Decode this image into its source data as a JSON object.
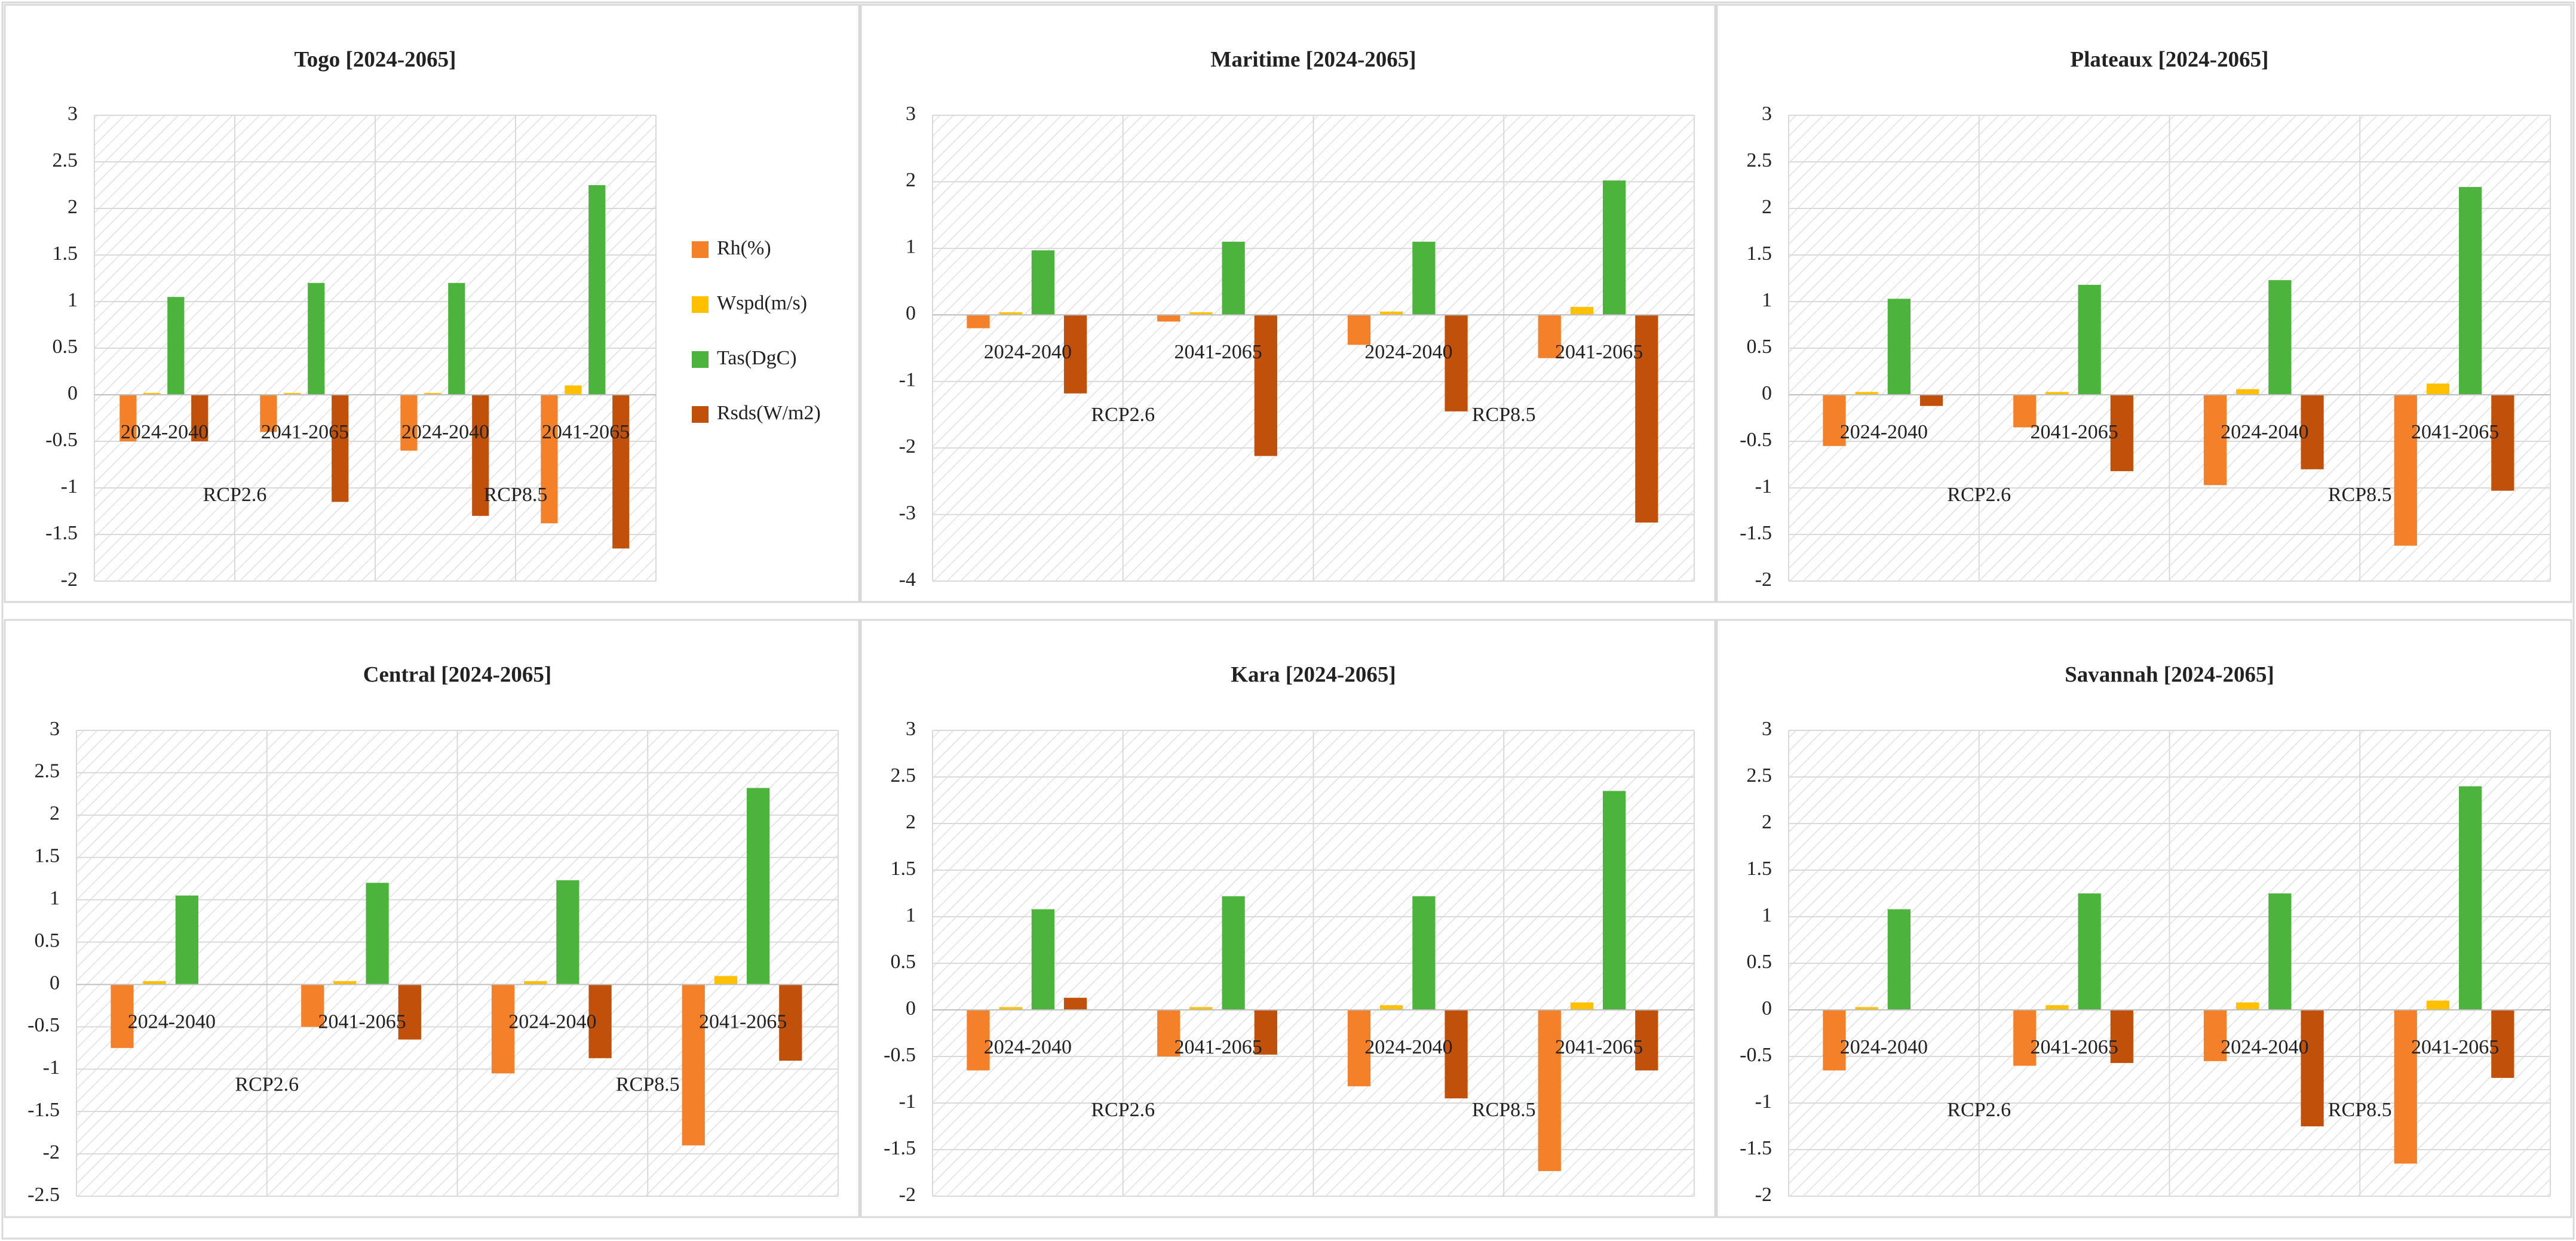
{
  "chart_data": [
    {
      "type": "bar",
      "title": "Togo [2024-2065]",
      "legend": true,
      "categories": [
        "2024-2040",
        "2041-2065",
        "2024-2040",
        "2041-2065"
      ],
      "category_groups": [
        "RCP2.6",
        "RCP8.5"
      ],
      "ylim": [
        -2,
        3
      ],
      "yticks": [
        -2,
        -1.5,
        -1,
        -0.5,
        0,
        0.5,
        1,
        1.5,
        2,
        2.5,
        3
      ],
      "grid": true,
      "series": [
        {
          "name": "Rh(%)",
          "color": "#f4812a",
          "values": [
            -0.5,
            -0.4,
            -0.6,
            -1.38
          ]
        },
        {
          "name": "Wspd(m/s)",
          "color": "#ffc000",
          "values": [
            0.02,
            0.02,
            0.02,
            0.1
          ]
        },
        {
          "name": "Tas(DgC)",
          "color": "#4cb43c",
          "values": [
            1.05,
            1.2,
            1.2,
            2.25
          ]
        },
        {
          "name": "Rsds(W/m2)",
          "color": "#c0500a",
          "values": [
            -0.5,
            -1.15,
            -1.3,
            -1.65
          ]
        }
      ]
    },
    {
      "type": "bar",
      "title": "Maritime [2024-2065]",
      "legend": false,
      "categories": [
        "2024-2040",
        "2041-2065",
        "2024-2040",
        "2041-2065"
      ],
      "category_groups": [
        "RCP2.6",
        "RCP8.5"
      ],
      "ylim": [
        -4,
        3
      ],
      "yticks": [
        -4,
        -3,
        -2,
        -1,
        0,
        1,
        2,
        3
      ],
      "grid": true,
      "series": [
        {
          "color": "#f4812a",
          "values": [
            -0.2,
            -0.1,
            -0.45,
            -0.65
          ]
        },
        {
          "color": "#ffc000",
          "values": [
            0.04,
            0.04,
            0.05,
            0.12
          ]
        },
        {
          "color": "#4cb43c",
          "values": [
            0.97,
            1.1,
            1.1,
            2.02
          ]
        },
        {
          "color": "#c0500a",
          "values": [
            -1.18,
            -2.12,
            -1.45,
            -3.12
          ]
        }
      ]
    },
    {
      "type": "bar",
      "title": "Plateaux [2024-2065]",
      "legend": false,
      "categories": [
        "2024-2040",
        "2041-2065",
        "2024-2040",
        "2041-2065"
      ],
      "category_groups": [
        "RCP2.6",
        "RCP8.5"
      ],
      "ylim": [
        -2,
        3
      ],
      "yticks": [
        -2,
        -1.5,
        -1,
        -0.5,
        0,
        0.5,
        1,
        1.5,
        2,
        2.5,
        3
      ],
      "grid": true,
      "series": [
        {
          "color": "#f4812a",
          "values": [
            -0.55,
            -0.35,
            -0.97,
            -1.62
          ]
        },
        {
          "color": "#ffc000",
          "values": [
            0.03,
            0.03,
            0.06,
            0.12
          ]
        },
        {
          "color": "#4cb43c",
          "values": [
            1.03,
            1.18,
            1.23,
            2.23
          ]
        },
        {
          "color": "#c0500a",
          "values": [
            -0.12,
            -0.82,
            -0.8,
            -1.03
          ]
        }
      ]
    },
    {
      "type": "bar",
      "title": "Central [2024-2065]",
      "legend": false,
      "categories": [
        "2024-2040",
        "2041-2065",
        "2024-2040",
        "2041-2065"
      ],
      "category_groups": [
        "RCP2.6",
        "RCP8.5"
      ],
      "ylim": [
        -2.5,
        3
      ],
      "yticks": [
        -2.5,
        -2,
        -1.5,
        -1,
        -0.5,
        0,
        0.5,
        1,
        1.5,
        2,
        2.5,
        3
      ],
      "grid": true,
      "series": [
        {
          "color": "#f4812a",
          "values": [
            -0.75,
            -0.5,
            -1.05,
            -1.9
          ]
        },
        {
          "color": "#ffc000",
          "values": [
            0.04,
            0.04,
            0.04,
            0.1
          ]
        },
        {
          "color": "#4cb43c",
          "values": [
            1.05,
            1.2,
            1.23,
            2.32
          ]
        },
        {
          "color": "#c0500a",
          "values": [
            0,
            -0.65,
            -0.87,
            -0.9
          ]
        }
      ]
    },
    {
      "type": "bar",
      "title": "Kara [2024-2065]",
      "legend": false,
      "categories": [
        "2024-2040",
        "2041-2065",
        "2024-2040",
        "2041-2065"
      ],
      "category_groups": [
        "RCP2.6",
        "RCP8.5"
      ],
      "ylim": [
        -2,
        3
      ],
      "yticks": [
        -2,
        -1.5,
        -1,
        -0.5,
        0,
        0.5,
        1,
        1.5,
        2,
        2.5,
        3
      ],
      "grid": true,
      "series": [
        {
          "color": "#f4812a",
          "values": [
            -0.65,
            -0.5,
            -0.82,
            -1.73
          ]
        },
        {
          "color": "#ffc000",
          "values": [
            0.03,
            0.03,
            0.05,
            0.08
          ]
        },
        {
          "color": "#4cb43c",
          "values": [
            1.08,
            1.22,
            1.22,
            2.35
          ]
        },
        {
          "color": "#c0500a",
          "values": [
            0.13,
            -0.48,
            -0.95,
            -0.65
          ]
        }
      ]
    },
    {
      "type": "bar",
      "title": "Savannah [2024-2065]",
      "legend": false,
      "categories": [
        "2024-2040",
        "2041-2065",
        "2024-2040",
        "2041-2065"
      ],
      "category_groups": [
        "RCP2.6",
        "RCP8.5"
      ],
      "ylim": [
        -2,
        3
      ],
      "yticks": [
        -2,
        -1.5,
        -1,
        -0.5,
        0,
        0.5,
        1,
        1.5,
        2,
        2.5,
        3
      ],
      "grid": true,
      "series": [
        {
          "color": "#f4812a",
          "values": [
            -0.65,
            -0.6,
            -0.55,
            -1.65
          ]
        },
        {
          "color": "#ffc000",
          "values": [
            0.03,
            0.05,
            0.08,
            0.1
          ]
        },
        {
          "color": "#4cb43c",
          "values": [
            1.08,
            1.25,
            1.25,
            2.4
          ]
        },
        {
          "color": "#c0500a",
          "values": [
            0,
            -0.57,
            -1.25,
            -0.73
          ]
        }
      ]
    }
  ]
}
